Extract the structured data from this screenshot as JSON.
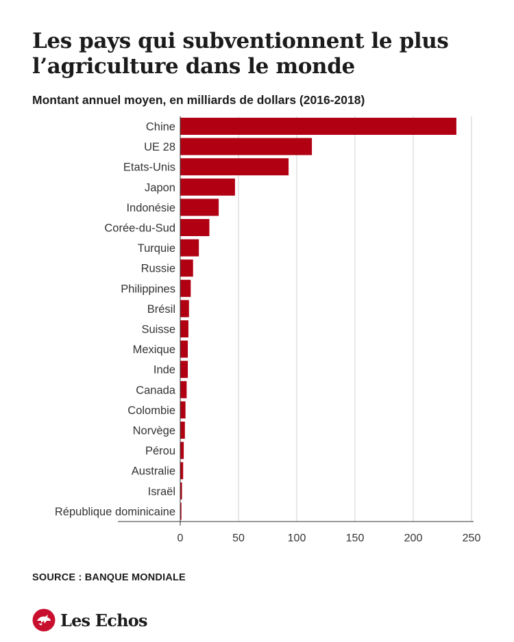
{
  "title": "Les pays qui subventionnent le plus l’agriculture dans le monde",
  "subtitle": "Montant annuel moyen, en milliards de dollars (2016-2018)",
  "source": "SOURCE : BANQUE MONDIALE",
  "brand": "Les Echos",
  "colors": {
    "bar": "#b00012",
    "grid": "#cfcfcf",
    "axis": "#333333",
    "logo": "#c8102e"
  },
  "chart_data": {
    "type": "bar",
    "orientation": "horizontal",
    "categories": [
      "Chine",
      "UE 28",
      "Etats-Unis",
      "Japon",
      "Indonésie",
      "Corée-du-Sud",
      "Turquie",
      "Russie",
      "Philippines",
      "Brésil",
      "Suisse",
      "Mexique",
      "Inde",
      "Canada",
      "Colombie",
      "Norvège",
      "Pérou",
      "Australie",
      "Israël",
      "République dominicaine"
    ],
    "values": [
      237,
      113,
      93,
      47,
      33,
      25,
      16,
      11,
      9,
      7.5,
      7,
      6.5,
      6.5,
      5.5,
      4.5,
      4,
      3,
      2.5,
      1.5,
      1
    ],
    "xlim": [
      0,
      250
    ],
    "xticks": [
      "0",
      "50",
      "100",
      "150",
      "200",
      "250"
    ],
    "grid": true,
    "legend": "none"
  }
}
